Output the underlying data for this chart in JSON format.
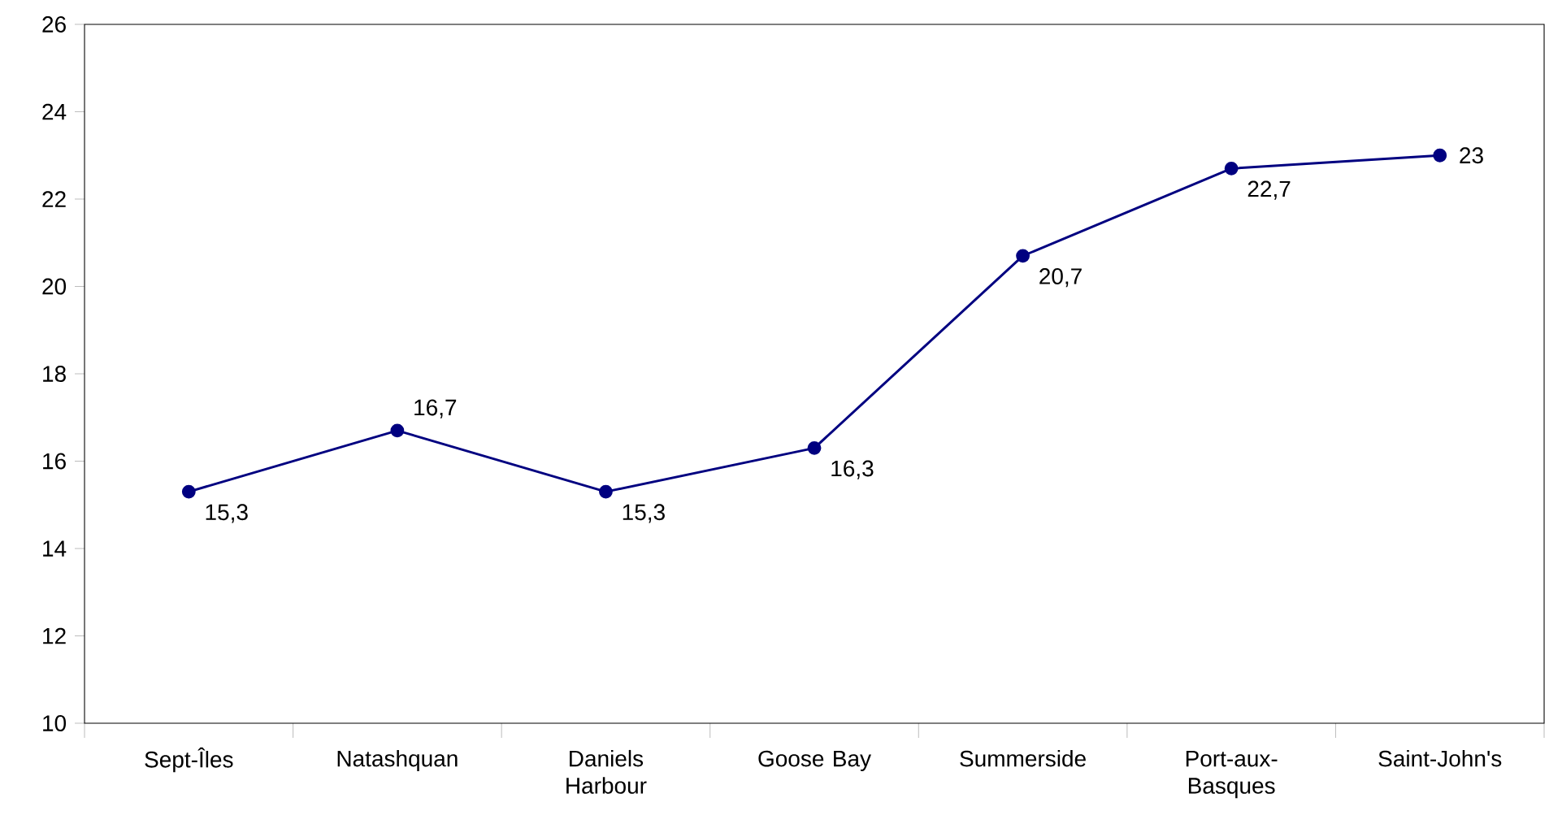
{
  "chart_data": {
    "type": "line",
    "categories": [
      "Sept-Îles",
      "Natashquan",
      "Daniels Harbour",
      "Goose Bay",
      "Summerside",
      "Port-aux-Basques",
      "Saint-John's"
    ],
    "series": [
      {
        "color": "#000080",
        "values": [
          15.3,
          16.7,
          15.3,
          16.3,
          20.7,
          22.7,
          23.0
        ],
        "value_labels": [
          "15,3",
          "16,7",
          "15,3",
          "16,3",
          "20,7",
          "22,7",
          "23"
        ]
      }
    ],
    "ylim": [
      10,
      26
    ],
    "yticks": [
      10,
      12,
      14,
      16,
      18,
      20,
      22,
      24,
      26
    ],
    "marker": "circle",
    "line_style": "solid"
  }
}
